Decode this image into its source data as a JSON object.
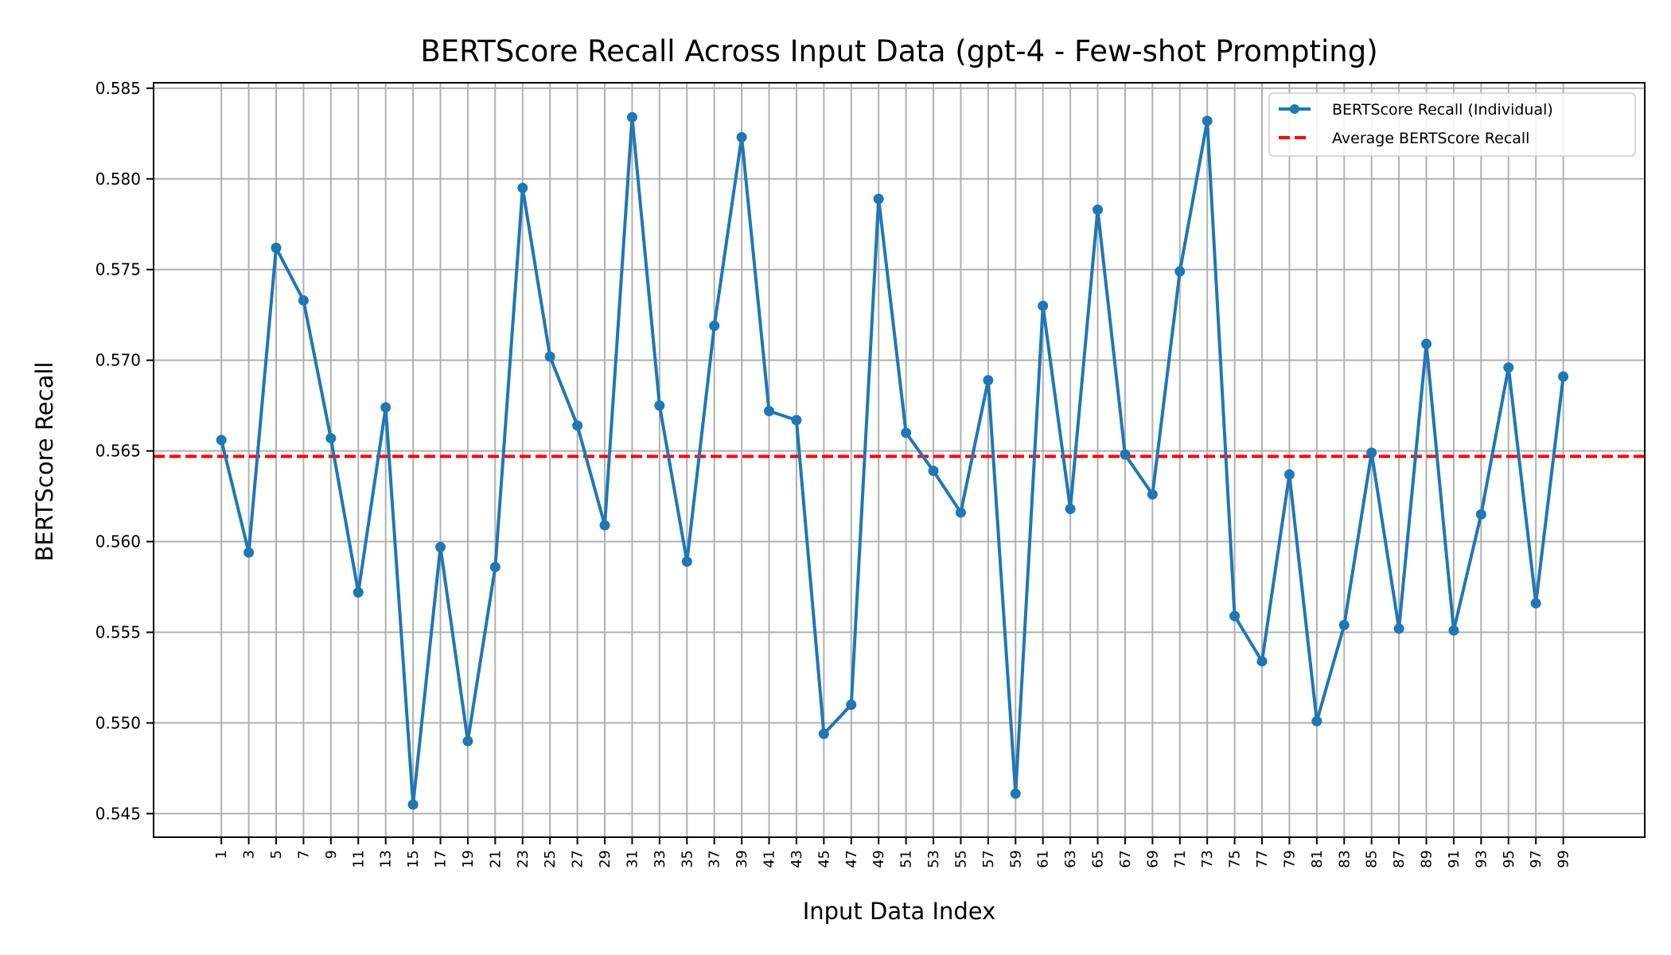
{
  "chart_data": {
    "type": "line",
    "title": "BERTScore Recall Across Input Data (gpt-4 - Few-shot Prompting)",
    "xlabel": "Input Data Index",
    "ylabel": "BERTScore Recall",
    "xlim": [
      -3.95,
      104.95
    ],
    "ylim": [
      0.5437,
      0.5853
    ],
    "grid": true,
    "legend_position": "upper right",
    "x_ticks": [
      1,
      3,
      5,
      7,
      9,
      11,
      13,
      15,
      17,
      19,
      21,
      23,
      25,
      27,
      29,
      31,
      33,
      35,
      37,
      39,
      41,
      43,
      45,
      47,
      49,
      51,
      53,
      55,
      57,
      59,
      61,
      63,
      65,
      67,
      69,
      71,
      73,
      75,
      77,
      79,
      81,
      83,
      85,
      87,
      89,
      91,
      93,
      95,
      97,
      99
    ],
    "y_ticks": [
      0.545,
      0.55,
      0.555,
      0.56,
      0.565,
      0.57,
      0.575,
      0.58,
      0.585
    ],
    "y_tick_labels": [
      "0.545",
      "0.550",
      "0.555",
      "0.560",
      "0.565",
      "0.570",
      "0.575",
      "0.580",
      "0.585"
    ],
    "series": [
      {
        "name": "BERTScore Recall (Individual)",
        "color": "#1f77b4",
        "marker": "circle",
        "x": [
          1,
          3,
          5,
          7,
          9,
          11,
          13,
          15,
          17,
          19,
          21,
          23,
          25,
          27,
          29,
          31,
          33,
          35,
          37,
          39,
          41,
          43,
          45,
          47,
          49,
          51,
          53,
          55,
          57,
          59,
          61,
          63,
          65,
          67,
          69,
          71,
          73,
          75,
          77,
          79,
          81,
          83,
          85,
          87,
          89,
          91,
          93,
          95,
          97,
          99
        ],
        "values": [
          0.5656,
          0.5594,
          0.5762,
          0.5733,
          0.5657,
          0.5572,
          0.5674,
          0.5455,
          0.5597,
          0.549,
          0.5586,
          0.5795,
          0.5702,
          0.5664,
          0.5609,
          0.5834,
          0.5675,
          0.5589,
          0.5719,
          0.5823,
          0.5672,
          0.5667,
          0.5494,
          0.551,
          0.5789,
          0.566,
          0.5639,
          0.5616,
          0.5689,
          0.5461,
          0.573,
          0.5618,
          0.5783,
          0.5648,
          0.5626,
          0.5749,
          0.5832,
          0.5559,
          0.5534,
          0.5637,
          0.5501,
          0.5554,
          0.5649,
          0.5552,
          0.5709,
          0.5551,
          0.5615,
          0.5696,
          0.5566,
          0.5691
        ]
      }
    ],
    "average": {
      "name": "Average BERTScore Recall",
      "value": 0.5647,
      "color": "#ff0000",
      "style": "dashed"
    }
  }
}
